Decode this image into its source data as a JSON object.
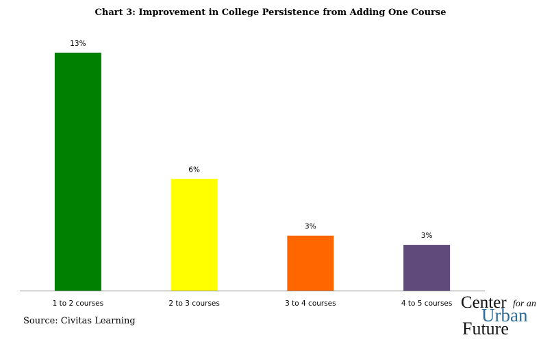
{
  "chart_data": {
    "type": "bar",
    "title": "Chart 3: Improvement in College Persistence from Adding One Course",
    "categories": [
      "1 to 2 courses",
      "2 to 3 courses",
      "3 to 4 courses",
      "4 to 5 courses"
    ],
    "values": [
      13,
      6.1,
      3.0,
      2.5
    ],
    "data_labels": [
      "13%",
      "6%",
      "3%",
      "3%"
    ],
    "colors": [
      "#008000",
      "#ffff00",
      "#ff6600",
      "#604a7b"
    ],
    "xlabel": "",
    "ylabel": "",
    "ylim": [
      0,
      13
    ],
    "grid": false,
    "legend": "none"
  },
  "source": "Source: Civitas Learning",
  "logo": {
    "line1": "Center",
    "line1b": "for an",
    "line2": "Urban",
    "line3": "Future"
  }
}
